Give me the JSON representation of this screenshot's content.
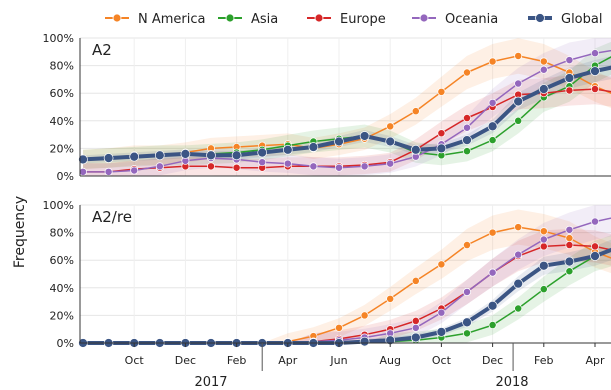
{
  "chart_data": {
    "type": "line",
    "ylabel": "Frequency",
    "x_ticks": [
      "Oct",
      "Dec",
      "Feb",
      "Apr",
      "Jun",
      "Aug",
      "Oct",
      "Dec",
      "Feb",
      "Apr"
    ],
    "year_labels": [
      "2017",
      "2018"
    ],
    "y_ticks": [
      "0%",
      "20%",
      "40%",
      "60%",
      "80%",
      "100%"
    ],
    "ylim": [
      0,
      1
    ],
    "grid": true,
    "legend_position": "top",
    "colors": {
      "N America": "#f58426",
      "Asia": "#2ca02c",
      "Europe": "#d62728",
      "Oceania": "#9467bd",
      "Global": "#3b5584"
    },
    "x": [
      "2016-08",
      "2016-09",
      "2016-10",
      "2016-11",
      "2016-12",
      "2017-01",
      "2017-02",
      "2017-03",
      "2017-04",
      "2017-05",
      "2017-06",
      "2017-07",
      "2017-08",
      "2017-09",
      "2017-10",
      "2017-11",
      "2017-12",
      "2018-01",
      "2018-02",
      "2018-03",
      "2018-04",
      "2018-05"
    ],
    "panels": [
      {
        "label": "A2",
        "series": [
          {
            "name": "N America",
            "values": [
              0.12,
              0.13,
              0.15,
              0.15,
              0.17,
              0.2,
              0.21,
              0.22,
              0.23,
              0.2,
              0.23,
              0.27,
              0.36,
              0.47,
              0.61,
              0.75,
              0.83,
              0.87,
              0.83,
              0.75,
              0.65,
              0.57
            ]
          },
          {
            "name": "Asia",
            "values": [
              0.12,
              0.13,
              0.14,
              0.15,
              0.15,
              0.16,
              0.17,
              0.19,
              0.22,
              0.25,
              0.27,
              0.29,
              0.25,
              0.17,
              0.15,
              0.18,
              0.26,
              0.4,
              0.57,
              0.65,
              0.8,
              0.9
            ]
          },
          {
            "name": "Europe",
            "values": [
              0.03,
              0.03,
              0.05,
              0.06,
              0.07,
              0.07,
              0.06,
              0.06,
              0.07,
              0.07,
              0.07,
              0.08,
              0.1,
              0.19,
              0.31,
              0.42,
              0.5,
              0.59,
              0.6,
              0.62,
              0.63,
              0.6
            ]
          },
          {
            "name": "Oceania",
            "values": [
              0.03,
              0.03,
              0.04,
              0.07,
              0.11,
              0.13,
              0.12,
              0.1,
              0.09,
              0.07,
              0.06,
              0.07,
              0.09,
              0.14,
              0.23,
              0.35,
              0.53,
              0.67,
              0.77,
              0.84,
              0.89,
              0.92
            ]
          },
          {
            "name": "Global",
            "values": [
              0.12,
              0.13,
              0.14,
              0.15,
              0.16,
              0.15,
              0.15,
              0.17,
              0.19,
              0.21,
              0.25,
              0.29,
              0.25,
              0.19,
              0.2,
              0.26,
              0.36,
              0.54,
              0.63,
              0.71,
              0.76,
              0.8
            ]
          }
        ]
      },
      {
        "label": "A2/re",
        "series": [
          {
            "name": "N America",
            "values": [
              0,
              0,
              0,
              0,
              0,
              0,
              0,
              0,
              0.01,
              0.05,
              0.11,
              0.2,
              0.32,
              0.45,
              0.57,
              0.71,
              0.8,
              0.84,
              0.81,
              0.76,
              0.66,
              0.59
            ]
          },
          {
            "name": "Asia",
            "values": [
              0,
              0,
              0,
              0,
              0,
              0,
              0,
              0,
              0,
              0,
              0,
              0,
              0.01,
              0.02,
              0.04,
              0.07,
              0.13,
              0.25,
              0.39,
              0.52,
              0.63,
              0.69
            ]
          },
          {
            "name": "Europe",
            "values": [
              0,
              0,
              0,
              0,
              0,
              0,
              0,
              0,
              0,
              0.01,
              0.03,
              0.06,
              0.1,
              0.16,
              0.25,
              0.37,
              0.51,
              0.63,
              0.7,
              0.71,
              0.7,
              0.66
            ]
          },
          {
            "name": "Oceania",
            "values": [
              0,
              0,
              0,
              0,
              0,
              0,
              0,
              0,
              0,
              0.01,
              0.02,
              0.04,
              0.07,
              0.11,
              0.22,
              0.37,
              0.51,
              0.64,
              0.75,
              0.82,
              0.88,
              0.92
            ]
          },
          {
            "name": "Global",
            "values": [
              0,
              0,
              0,
              0,
              0,
              0,
              0,
              0,
              0,
              0,
              0,
              0.01,
              0.02,
              0.04,
              0.08,
              0.15,
              0.27,
              0.43,
              0.56,
              0.59,
              0.63,
              0.7
            ]
          }
        ]
      }
    ]
  }
}
